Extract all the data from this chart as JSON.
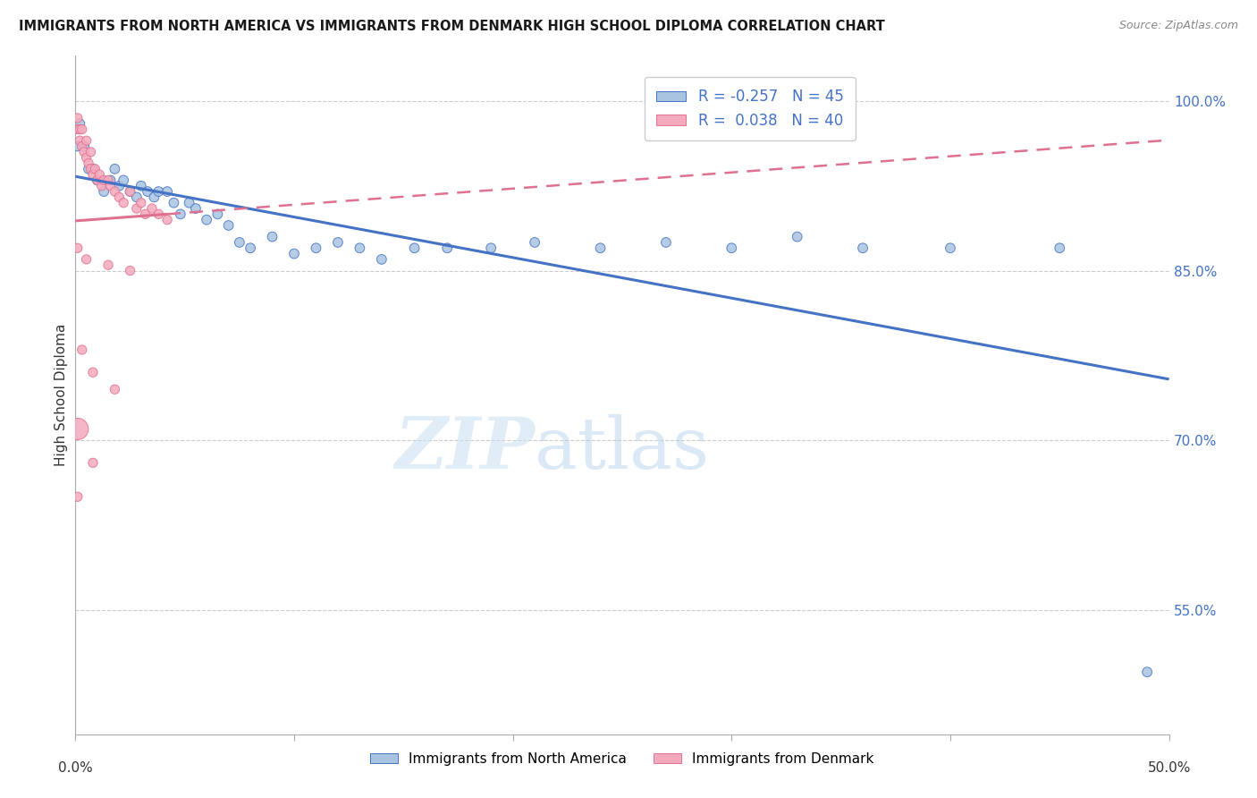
{
  "title": "IMMIGRANTS FROM NORTH AMERICA VS IMMIGRANTS FROM DENMARK HIGH SCHOOL DIPLOMA CORRELATION CHART",
  "source": "Source: ZipAtlas.com",
  "ylabel": "High School Diploma",
  "ytick_labels": [
    "100.0%",
    "85.0%",
    "70.0%",
    "55.0%"
  ],
  "ytick_values": [
    1.0,
    0.85,
    0.7,
    0.55
  ],
  "xlim": [
    0.0,
    0.5
  ],
  "ylim": [
    0.44,
    1.04
  ],
  "legend_r_blue": "-0.257",
  "legend_n_blue": "45",
  "legend_r_pink": "0.038",
  "legend_n_pink": "40",
  "blue_color": "#a8c4e0",
  "pink_color": "#f4aabc",
  "blue_line_color": "#4472C4",
  "pink_line_color": "#E07090",
  "watermark": "ZIPatlas",
  "blue_scatter": [
    [
      0.001,
      0.96
    ],
    [
      0.002,
      0.98
    ],
    [
      0.004,
      0.96
    ],
    [
      0.006,
      0.94
    ],
    [
      0.008,
      0.94
    ],
    [
      0.01,
      0.93
    ],
    [
      0.013,
      0.92
    ],
    [
      0.016,
      0.93
    ],
    [
      0.018,
      0.94
    ],
    [
      0.02,
      0.925
    ],
    [
      0.022,
      0.93
    ],
    [
      0.025,
      0.92
    ],
    [
      0.028,
      0.915
    ],
    [
      0.03,
      0.925
    ],
    [
      0.033,
      0.92
    ],
    [
      0.036,
      0.915
    ],
    [
      0.038,
      0.92
    ],
    [
      0.042,
      0.92
    ],
    [
      0.045,
      0.91
    ],
    [
      0.048,
      0.9
    ],
    [
      0.052,
      0.91
    ],
    [
      0.055,
      0.905
    ],
    [
      0.06,
      0.895
    ],
    [
      0.065,
      0.9
    ],
    [
      0.07,
      0.89
    ],
    [
      0.075,
      0.875
    ],
    [
      0.08,
      0.87
    ],
    [
      0.09,
      0.88
    ],
    [
      0.1,
      0.865
    ],
    [
      0.11,
      0.87
    ],
    [
      0.12,
      0.875
    ],
    [
      0.13,
      0.87
    ],
    [
      0.14,
      0.86
    ],
    [
      0.155,
      0.87
    ],
    [
      0.17,
      0.87
    ],
    [
      0.19,
      0.87
    ],
    [
      0.21,
      0.875
    ],
    [
      0.24,
      0.87
    ],
    [
      0.27,
      0.875
    ],
    [
      0.3,
      0.87
    ],
    [
      0.33,
      0.88
    ],
    [
      0.36,
      0.87
    ],
    [
      0.4,
      0.87
    ],
    [
      0.45,
      0.87
    ],
    [
      0.49,
      0.495
    ]
  ],
  "blue_sizes": [
    60,
    60,
    60,
    60,
    60,
    60,
    60,
    60,
    60,
    60,
    60,
    60,
    60,
    60,
    60,
    60,
    60,
    60,
    60,
    60,
    60,
    60,
    60,
    60,
    60,
    60,
    60,
    60,
    60,
    60,
    60,
    60,
    60,
    60,
    60,
    60,
    60,
    60,
    60,
    60,
    60,
    60,
    60,
    60,
    60
  ],
  "pink_scatter": [
    [
      0.001,
      0.985
    ],
    [
      0.001,
      0.975
    ],
    [
      0.002,
      0.965
    ],
    [
      0.002,
      0.975
    ],
    [
      0.003,
      0.96
    ],
    [
      0.003,
      0.975
    ],
    [
      0.004,
      0.955
    ],
    [
      0.005,
      0.965
    ],
    [
      0.005,
      0.95
    ],
    [
      0.006,
      0.945
    ],
    [
      0.007,
      0.955
    ],
    [
      0.007,
      0.94
    ],
    [
      0.008,
      0.935
    ],
    [
      0.009,
      0.94
    ],
    [
      0.01,
      0.93
    ],
    [
      0.011,
      0.935
    ],
    [
      0.012,
      0.925
    ],
    [
      0.013,
      0.93
    ],
    [
      0.015,
      0.93
    ],
    [
      0.016,
      0.925
    ],
    [
      0.018,
      0.92
    ],
    [
      0.02,
      0.915
    ],
    [
      0.022,
      0.91
    ],
    [
      0.025,
      0.92
    ],
    [
      0.028,
      0.905
    ],
    [
      0.03,
      0.91
    ],
    [
      0.032,
      0.9
    ],
    [
      0.035,
      0.905
    ],
    [
      0.038,
      0.9
    ],
    [
      0.042,
      0.895
    ],
    [
      0.001,
      0.87
    ],
    [
      0.005,
      0.86
    ],
    [
      0.015,
      0.855
    ],
    [
      0.025,
      0.85
    ],
    [
      0.003,
      0.78
    ],
    [
      0.008,
      0.76
    ],
    [
      0.018,
      0.745
    ],
    [
      0.001,
      0.71
    ],
    [
      0.008,
      0.68
    ],
    [
      0.001,
      0.65
    ]
  ],
  "pink_sizes": [
    55,
    55,
    55,
    55,
    55,
    55,
    55,
    55,
    55,
    55,
    55,
    55,
    55,
    55,
    55,
    55,
    55,
    55,
    55,
    55,
    55,
    55,
    55,
    55,
    55,
    55,
    55,
    55,
    55,
    55,
    55,
    55,
    55,
    55,
    55,
    55,
    55,
    300,
    55,
    55
  ]
}
